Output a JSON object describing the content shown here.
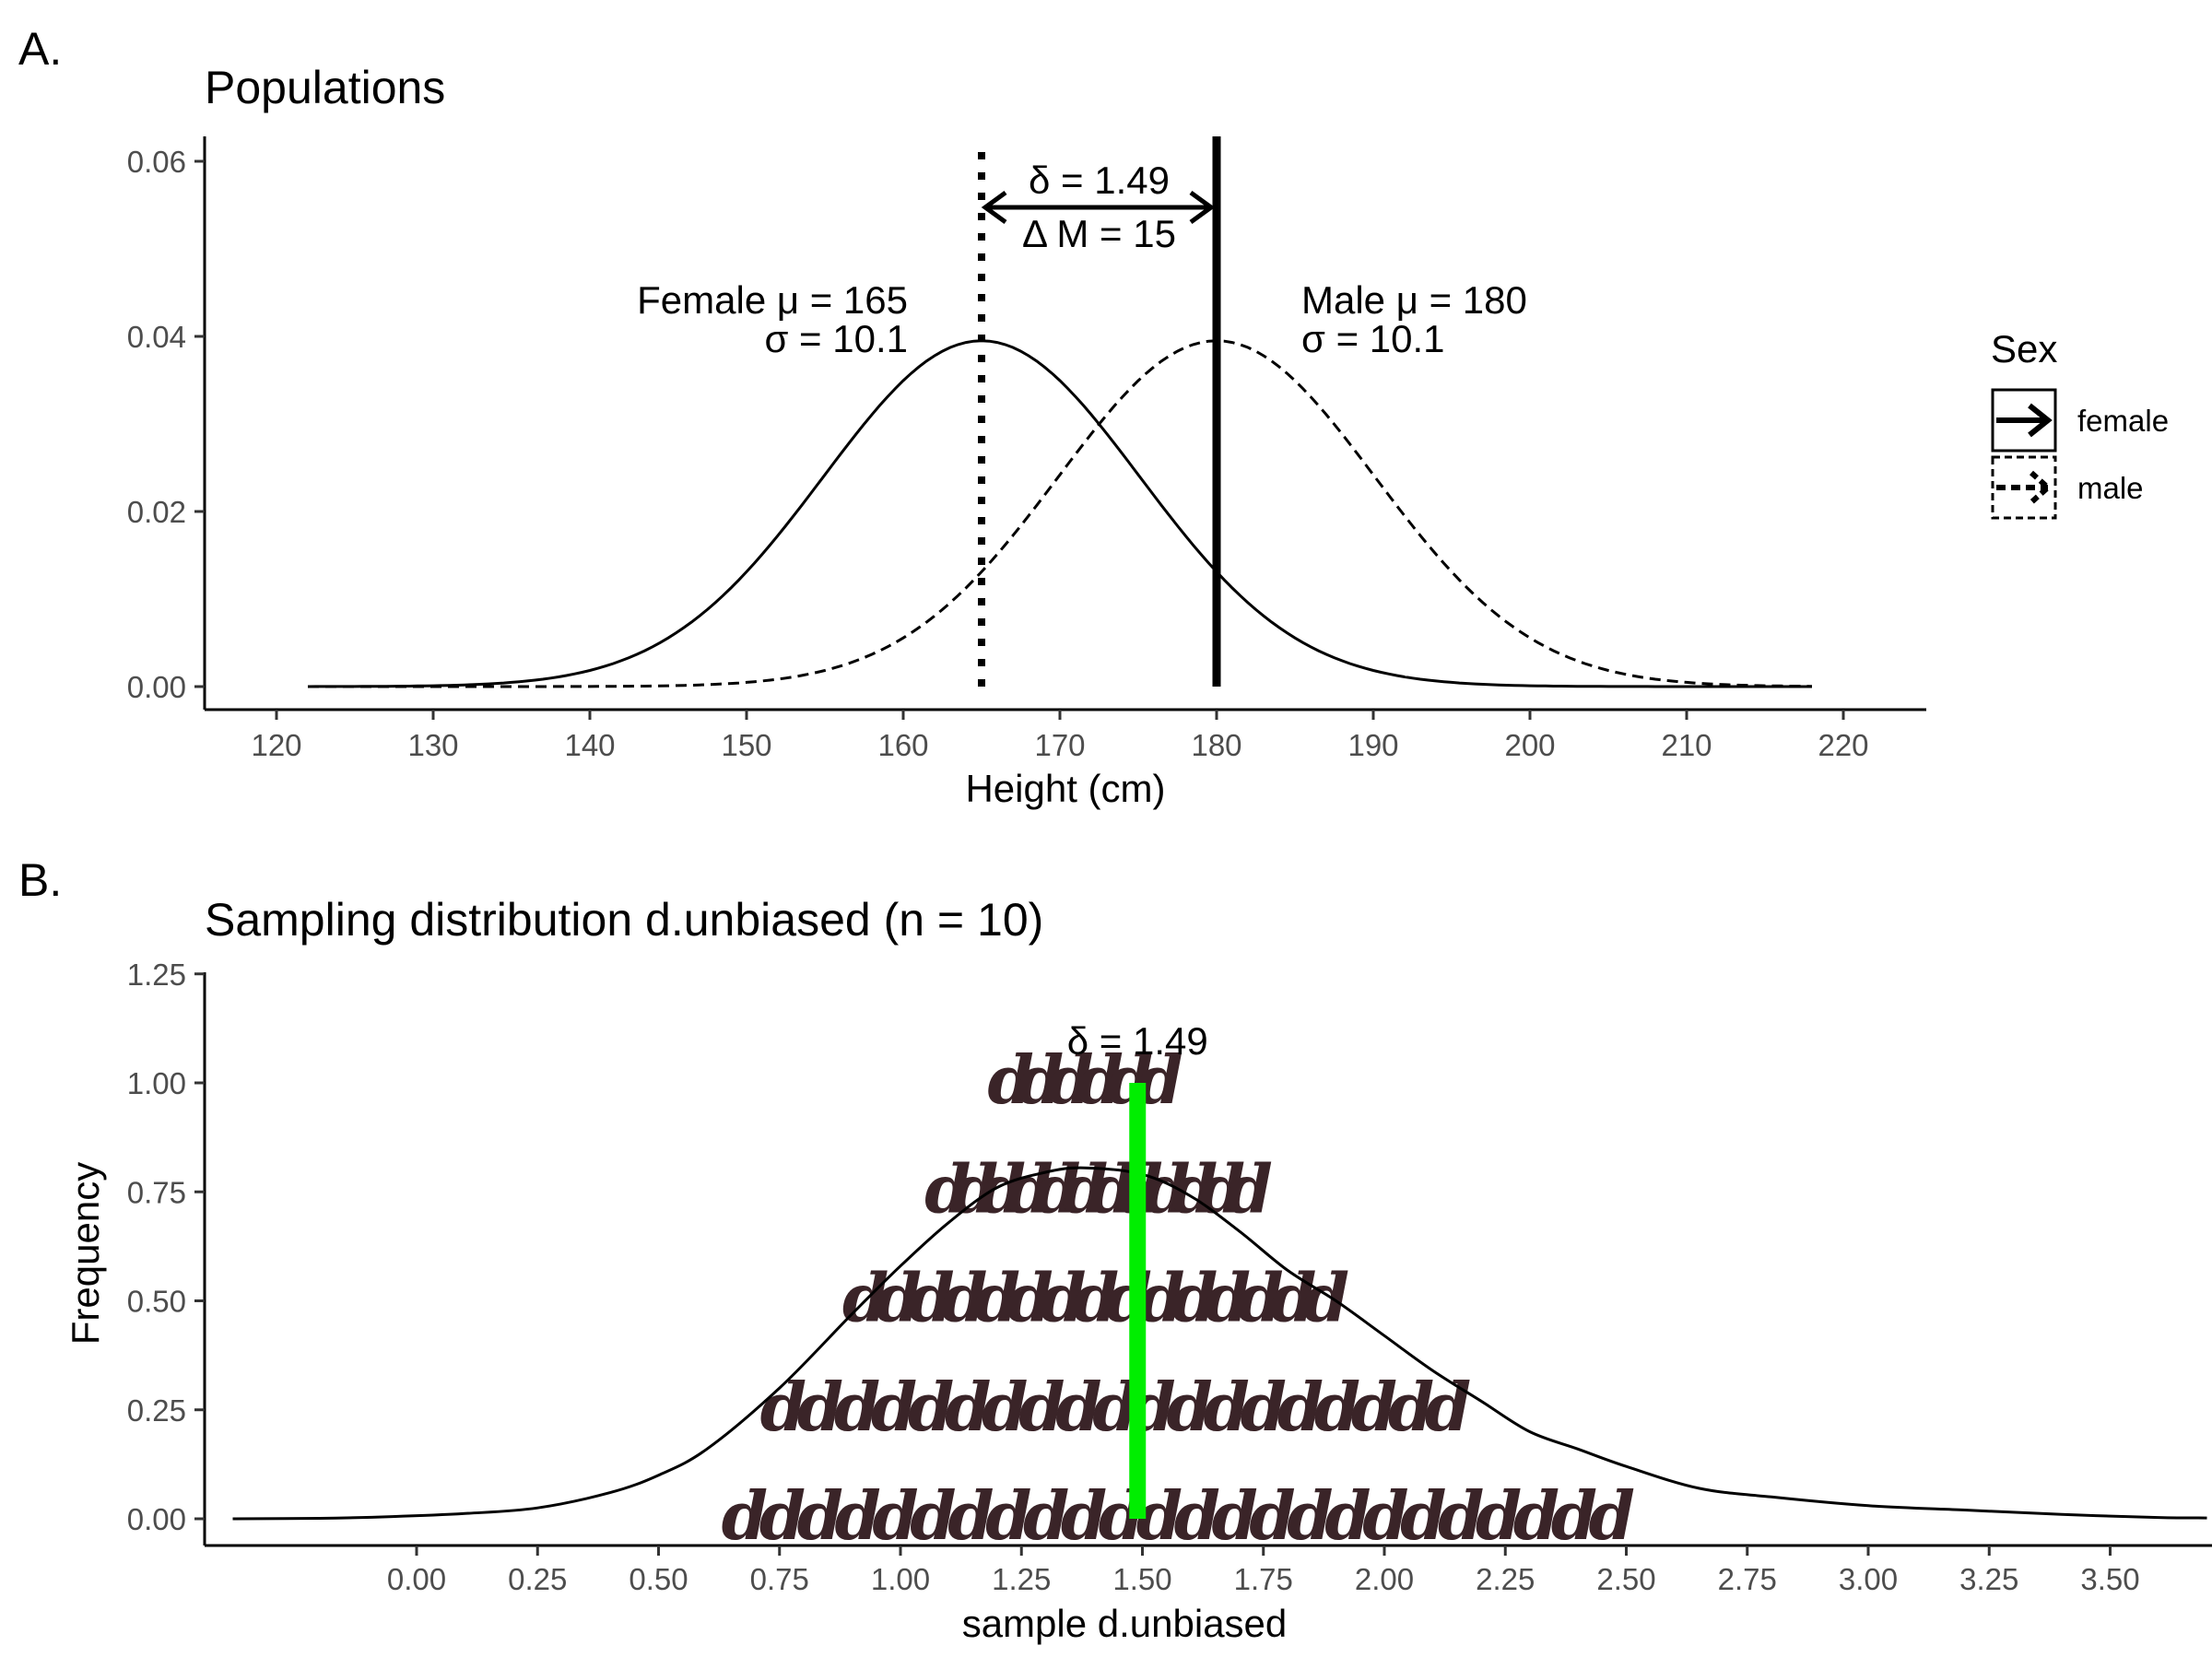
{
  "chart_data": [
    {
      "panel_label": "A.",
      "type": "line",
      "title": "Populations",
      "xlabel": "Height (cm)",
      "ylabel": "",
      "xlim": [
        115,
        225
      ],
      "ylim": [
        -0.003,
        0.063
      ],
      "x_ticks": [
        120,
        130,
        140,
        150,
        160,
        170,
        180,
        190,
        200,
        210,
        220
      ],
      "x_tick_labels": [
        "120",
        "130",
        "140",
        "150",
        "160",
        "170",
        "180",
        "190",
        "200",
        "210",
        "220"
      ],
      "y_ticks": [
        0,
        0.02,
        0.04,
        0.06
      ],
      "y_tick_labels": [
        "0.00",
        "0.02",
        "0.04",
        "0.06"
      ],
      "grid": false,
      "series": [
        {
          "name": "female",
          "linestyle": "solid",
          "mean": 165,
          "sd": 10.1,
          "x_range": [
            122,
            218
          ]
        },
        {
          "name": "male",
          "linestyle": "dashed",
          "mean": 180,
          "sd": 10.1,
          "x_range": [
            122,
            218
          ]
        }
      ],
      "vlines": [
        {
          "x": 165,
          "style": "dotted"
        },
        {
          "x": 180,
          "style": "solid"
        }
      ],
      "arrow": {
        "x_from": 165,
        "x_to": 180,
        "y": 0.055
      },
      "annotations": {
        "delta": "δ = 1.49",
        "delta_m": "Δ M = 15",
        "female_mu": "Female μ = 165",
        "female_sigma": "σ = 10.1",
        "male_mu": "Male μ = 180",
        "male_sigma": "σ = 10.1"
      },
      "legend": {
        "title": "Sex",
        "position": "right",
        "items": [
          {
            "label": "female",
            "linestyle": "solid"
          },
          {
            "label": "male",
            "linestyle": "dashed"
          }
        ]
      }
    },
    {
      "panel_label": "B.",
      "type": "area",
      "title": "Sampling distribution d.unbiased (n = 10)",
      "xlabel": "sample d.unbiased",
      "ylabel": "Frequency",
      "xlim": [
        -0.43,
        3.7
      ],
      "ylim": [
        -0.06,
        1.25
      ],
      "x_ticks": [
        0,
        0.25,
        0.5,
        0.75,
        1.0,
        1.25,
        1.5,
        1.75,
        2.0,
        2.25,
        2.5,
        2.75,
        3.0,
        3.25,
        3.5
      ],
      "x_tick_labels": [
        "0.00",
        "0.25",
        "0.50",
        "0.75",
        "1.00",
        "1.25",
        "1.50",
        "1.75",
        "2.00",
        "2.25",
        "2.50",
        "2.75",
        "3.00",
        "3.25",
        "3.50"
      ],
      "y_ticks": [
        0,
        0.25,
        0.5,
        0.75,
        1.0,
        1.25
      ],
      "y_tick_labels": [
        "0.00",
        "0.25",
        "0.50",
        "0.75",
        "1.00",
        "1.25"
      ],
      "grid": false,
      "density": {
        "x": [
          -0.38,
          -0.2,
          -0.05,
          0.1,
          0.25,
          0.4,
          0.5,
          0.6,
          0.75,
          0.9,
          1.0,
          1.1,
          1.2,
          1.3,
          1.38,
          1.5,
          1.6,
          1.7,
          1.8,
          1.9,
          2.0,
          2.1,
          2.2,
          2.3,
          2.4,
          2.5,
          2.65,
          2.8,
          3.0,
          3.2,
          3.4,
          3.6,
          3.7
        ],
        "y": [
          0.0,
          0.001,
          0.005,
          0.012,
          0.025,
          0.06,
          0.1,
          0.16,
          0.3,
          0.47,
          0.58,
          0.68,
          0.76,
          0.795,
          0.805,
          0.79,
          0.74,
          0.66,
          0.57,
          0.5,
          0.42,
          0.34,
          0.27,
          0.2,
          0.16,
          0.12,
          0.07,
          0.05,
          0.03,
          0.02,
          0.01,
          0.003,
          0.002
        ]
      },
      "pictogram": {
        "glyph": "d",
        "rows": [
          {
            "y": 0.0,
            "x_from": 0.63,
            "x_to": 2.5,
            "count": 24
          },
          {
            "y": 0.25,
            "x_from": 0.71,
            "x_to": 2.16,
            "count": 19
          },
          {
            "y": 0.5,
            "x_from": 0.88,
            "x_to": 1.9,
            "count": 15
          },
          {
            "y": 0.75,
            "x_from": 1.05,
            "x_to": 1.73,
            "count": 12
          },
          {
            "y": 1.0,
            "x_from": 1.18,
            "x_to": 1.55,
            "count": 6
          }
        ]
      },
      "vline": {
        "x": 1.49,
        "y_from": 0,
        "y_to": 1.0,
        "color": "#00ee00"
      },
      "annotations": {
        "delta": "δ = 1.49"
      }
    }
  ]
}
